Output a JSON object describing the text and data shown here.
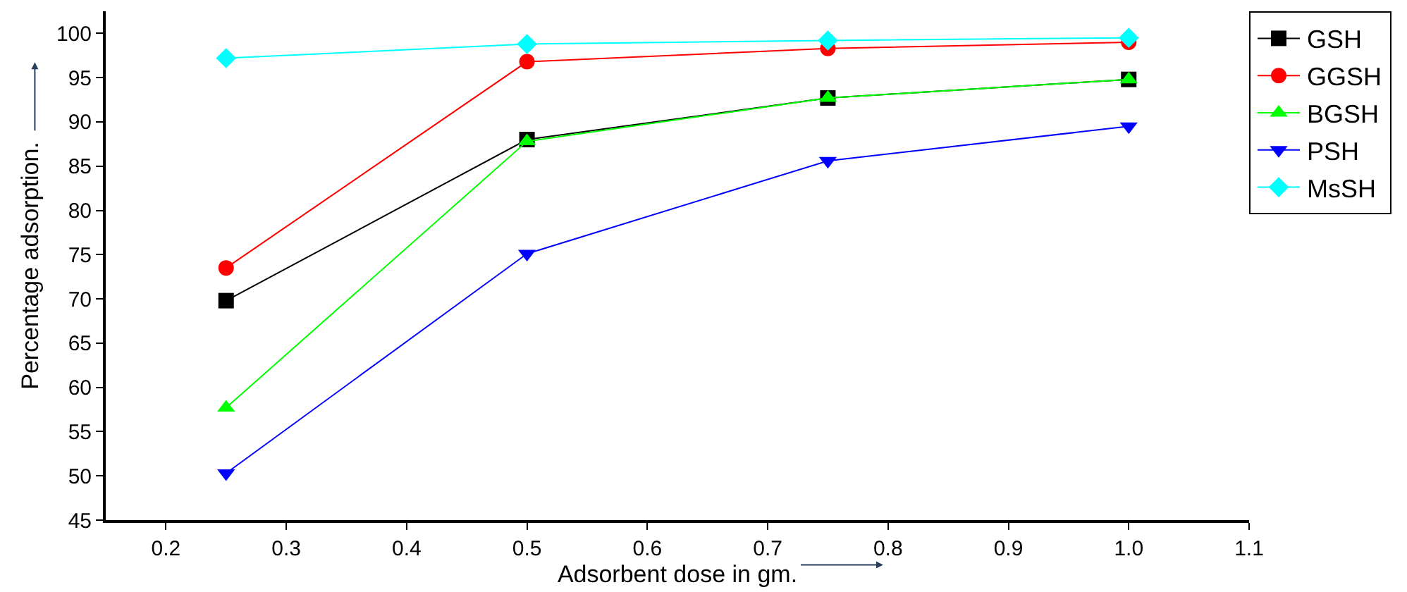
{
  "chart_data": {
    "type": "line",
    "xlabel": "Adsorbent dose in gm.",
    "ylabel": "Percentage adsorption.",
    "x": [
      0.25,
      0.5,
      0.75,
      1.0
    ],
    "series": [
      {
        "name": "GSH",
        "color": "#000000",
        "marker": "square",
        "values": [
          69.8,
          88.0,
          92.7,
          94.8
        ]
      },
      {
        "name": "GGSH",
        "color": "#ff0000",
        "marker": "circle",
        "values": [
          73.5,
          96.8,
          98.3,
          99.0
        ]
      },
      {
        "name": "BGSH",
        "color": "#00ff00",
        "marker": "triangle",
        "values": [
          57.7,
          87.8,
          92.7,
          94.8
        ]
      },
      {
        "name": "PSH",
        "color": "#0000ff",
        "marker": "triangle-down",
        "values": [
          50.3,
          75.1,
          85.6,
          89.5
        ]
      },
      {
        "name": "MsSH",
        "color": "#00ffff",
        "marker": "diamond",
        "values": [
          97.2,
          98.8,
          99.2,
          99.5
        ]
      }
    ],
    "xlim": [
      0.15,
      1.1
    ],
    "xticks": [
      0.2,
      0.3,
      0.4,
      0.5,
      0.6,
      0.7,
      0.8,
      0.9,
      {
        "value": 1.0,
        "label": "1.0"
      },
      1.1
    ],
    "ylim": [
      45,
      102.5
    ],
    "yticks": [
      45,
      50,
      55,
      60,
      65,
      70,
      75,
      80,
      85,
      90,
      95,
      100
    ],
    "legend": "top right",
    "line_style": "solid"
  }
}
